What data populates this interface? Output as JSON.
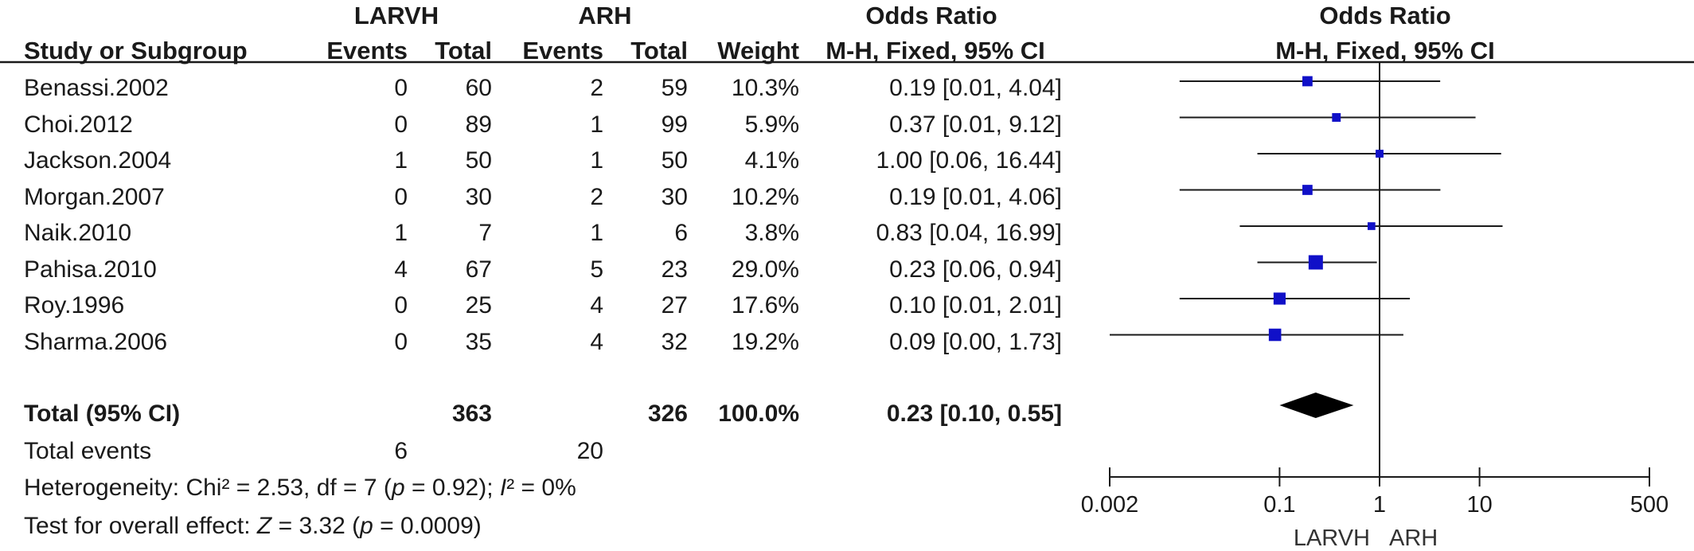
{
  "header": {
    "group1": "LARVH",
    "group2": "ARH",
    "odds_ratio_text": "Odds Ratio",
    "odds_ratio_plot": "Odds Ratio",
    "col_study": "Study or Subgroup",
    "col_events1": "Events",
    "col_total1": "Total",
    "col_events2": "Events",
    "col_total2": "Total",
    "col_weight": "Weight",
    "col_method_text": "M-H, Fixed, 95% CI",
    "col_method_plot": "M-H, Fixed, 95% CI"
  },
  "studies": [
    {
      "name": "Benassi.2002",
      "e1": "0",
      "t1": "60",
      "e2": "2",
      "t2": "59",
      "weight": "10.3%",
      "ci_text": "0.19 [0.01, 4.04]"
    },
    {
      "name": "Choi.2012",
      "e1": "0",
      "t1": "89",
      "e2": "1",
      "t2": "99",
      "weight": "5.9%",
      "ci_text": "0.37 [0.01, 9.12]"
    },
    {
      "name": "Jackson.2004",
      "e1": "1",
      "t1": "50",
      "e2": "1",
      "t2": "50",
      "weight": "4.1%",
      "ci_text": "1.00 [0.06, 16.44]"
    },
    {
      "name": "Morgan.2007",
      "e1": "0",
      "t1": "30",
      "e2": "2",
      "t2": "30",
      "weight": "10.2%",
      "ci_text": "0.19 [0.01, 4.06]"
    },
    {
      "name": "Naik.2010",
      "e1": "1",
      "t1": "7",
      "e2": "1",
      "t2": "6",
      "weight": "3.8%",
      "ci_text": "0.83 [0.04, 16.99]"
    },
    {
      "name": "Pahisa.2010",
      "e1": "4",
      "t1": "67",
      "e2": "5",
      "t2": "23",
      "weight": "29.0%",
      "ci_text": "0.23 [0.06, 0.94]"
    },
    {
      "name": "Roy.1996",
      "e1": "0",
      "t1": "25",
      "e2": "4",
      "t2": "27",
      "weight": "17.6%",
      "ci_text": "0.10 [0.01, 2.01]"
    },
    {
      "name": "Sharma.2006",
      "e1": "0",
      "t1": "35",
      "e2": "4",
      "t2": "32",
      "weight": "19.2%",
      "ci_text": "0.09 [0.00, 1.73]"
    }
  ],
  "total": {
    "label": "Total (95% CI)",
    "t1": "363",
    "t2": "326",
    "weight": "100.0%",
    "ci_text": "0.23 [0.10, 0.55]"
  },
  "total_events": {
    "label": "Total events",
    "e1": "6",
    "e2": "20"
  },
  "heterogeneity": {
    "prefix": "Heterogeneity: Chi² = 2.53, df = 7 (",
    "p_var": "p",
    "p_text": " = 0.92); ",
    "i_var": "I",
    "i_text": "² = 0%"
  },
  "overall": {
    "prefix": "Test for overall effect: ",
    "z_var": "Z",
    "z_text": " = 3.32 (",
    "p_var": "p",
    "p_text": " = 0.0009)"
  },
  "chart_data": {
    "type": "forest",
    "x_scale": "log",
    "xlim": [
      0.002,
      500
    ],
    "reference_line": 1,
    "ticks": [
      0.002,
      0.1,
      1,
      10,
      500
    ],
    "tick_labels": [
      "0.002",
      "0.1",
      "1",
      "10",
      "500"
    ],
    "favours_left": "LARVH",
    "favours_right": "ARH",
    "colors": {
      "study_marker": "#1010c8",
      "summary": "#000000",
      "line": "#1a1a1a"
    },
    "studies": [
      {
        "name": "Benassi.2002",
        "or": 0.19,
        "lower": 0.01,
        "upper": 4.04,
        "weight": 10.3
      },
      {
        "name": "Choi.2012",
        "or": 0.37,
        "lower": 0.01,
        "upper": 9.12,
        "weight": 5.9
      },
      {
        "name": "Jackson.2004",
        "or": 1.0,
        "lower": 0.06,
        "upper": 16.44,
        "weight": 4.1
      },
      {
        "name": "Morgan.2007",
        "or": 0.19,
        "lower": 0.01,
        "upper": 4.06,
        "weight": 10.2
      },
      {
        "name": "Naik.2010",
        "or": 0.83,
        "lower": 0.04,
        "upper": 16.99,
        "weight": 3.8
      },
      {
        "name": "Pahisa.2010",
        "or": 0.23,
        "lower": 0.06,
        "upper": 0.94,
        "weight": 29.0
      },
      {
        "name": "Roy.1996",
        "or": 0.1,
        "lower": 0.01,
        "upper": 2.01,
        "weight": 17.6
      },
      {
        "name": "Sharma.2006",
        "or": 0.09,
        "lower": 0.0,
        "upper": 1.73,
        "weight": 19.2
      }
    ],
    "summary": {
      "or": 0.23,
      "lower": 0.1,
      "upper": 0.55
    }
  }
}
